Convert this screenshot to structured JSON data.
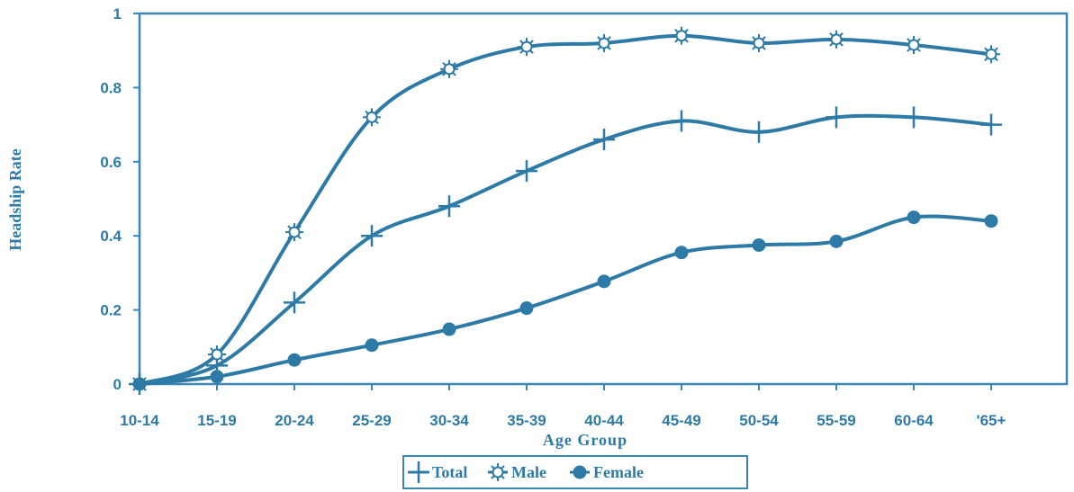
{
  "colors": {
    "ink": "#2e7aa6",
    "frame": "#3c86b2",
    "background": "#ffffff"
  },
  "chart_data": {
    "type": "line",
    "title": "",
    "xlabel": "Age Group",
    "ylabel": "Headship Rate",
    "categories": [
      "10-14",
      "15-19",
      "20-24",
      "25-29",
      "30-34",
      "35-39",
      "40-44",
      "45-49",
      "50-54",
      "55-59",
      "60-64",
      "'65+"
    ],
    "ylim": [
      0,
      1
    ],
    "yticks": [
      "0",
      "0.2",
      "0.4",
      "0.6",
      "0.8",
      "1"
    ],
    "grid": false,
    "legend_position": "bottom-center",
    "series": [
      {
        "name": "Total",
        "marker": "plus-icon",
        "values": [
          0,
          0.05,
          0.22,
          0.4,
          0.48,
          0.575,
          0.66,
          0.71,
          0.68,
          0.72,
          0.72,
          0.7
        ]
      },
      {
        "name": "Male",
        "marker": "sun-icon",
        "values": [
          0,
          0.08,
          0.41,
          0.72,
          0.85,
          0.91,
          0.92,
          0.94,
          0.92,
          0.93,
          0.915,
          0.89
        ]
      },
      {
        "name": "Female",
        "marker": "circle-icon",
        "values": [
          0,
          0.02,
          0.065,
          0.105,
          0.148,
          0.205,
          0.277,
          0.355,
          0.375,
          0.385,
          0.45,
          0.44
        ]
      }
    ]
  }
}
